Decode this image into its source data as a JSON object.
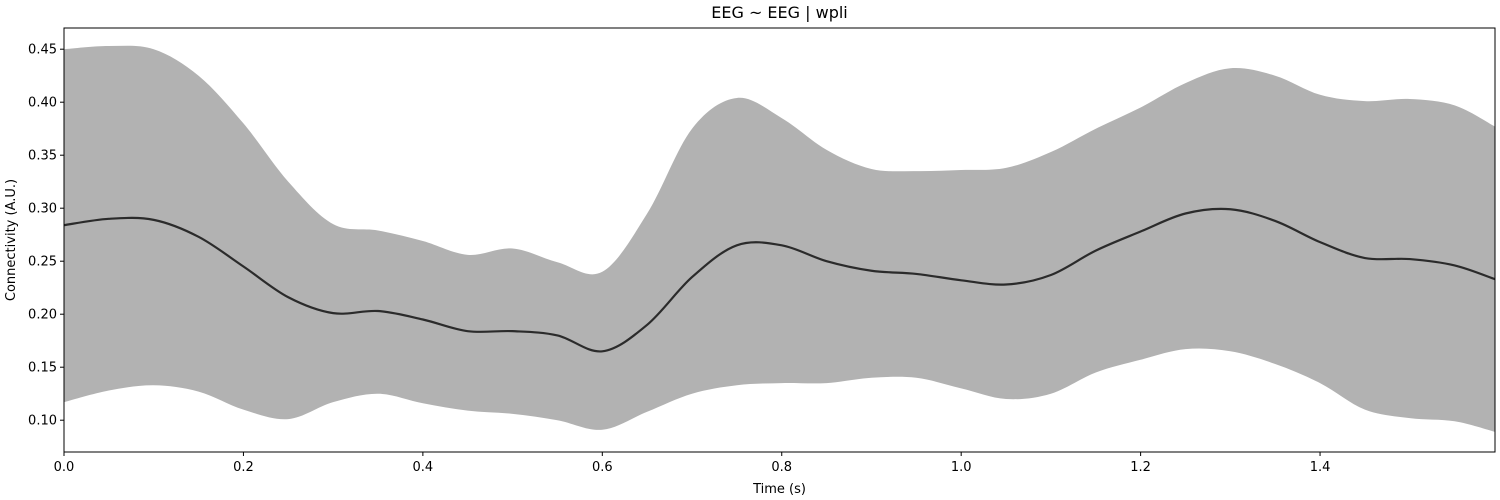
{
  "chart_data": {
    "type": "area",
    "title": "EEG ~ EEG | wpli",
    "xlabel": "Time (s)",
    "ylabel": "Connectivity (A.U.)",
    "xlim": [
      0.0,
      1.595
    ],
    "ylim": [
      0.07,
      0.47
    ],
    "x_ticks": [
      "0.0",
      "0.2",
      "0.4",
      "0.6",
      "0.8",
      "1.0",
      "1.2",
      "1.4"
    ],
    "y_ticks": [
      "0.10",
      "0.15",
      "0.20",
      "0.25",
      "0.30",
      "0.35",
      "0.40",
      "0.45"
    ],
    "grid": false,
    "colors": {
      "band": "#b2b2b2",
      "mean": "#2b2b2b"
    },
    "x": [
      0.0,
      0.05,
      0.1,
      0.15,
      0.2,
      0.25,
      0.3,
      0.35,
      0.4,
      0.45,
      0.5,
      0.55,
      0.6,
      0.65,
      0.7,
      0.75,
      0.8,
      0.85,
      0.9,
      0.95,
      1.0,
      1.05,
      1.1,
      1.15,
      1.2,
      1.25,
      1.3,
      1.35,
      1.4,
      1.45,
      1.5,
      1.55,
      1.595
    ],
    "series": [
      {
        "kind": "line",
        "values": [
          0.284,
          0.29,
          0.289,
          0.273,
          0.245,
          0.216,
          0.201,
          0.203,
          0.195,
          0.184,
          0.184,
          0.18,
          0.165,
          0.19,
          0.235,
          0.265,
          0.265,
          0.25,
          0.241,
          0.238,
          0.232,
          0.228,
          0.237,
          0.26,
          0.278,
          0.295,
          0.299,
          0.288,
          0.268,
          0.253,
          0.252,
          0.246,
          0.233
        ]
      },
      {
        "kind": "band",
        "lower": [
          0.117,
          0.128,
          0.133,
          0.127,
          0.11,
          0.101,
          0.117,
          0.125,
          0.116,
          0.109,
          0.106,
          0.1,
          0.091,
          0.108,
          0.125,
          0.133,
          0.135,
          0.135,
          0.14,
          0.14,
          0.13,
          0.12,
          0.125,
          0.145,
          0.157,
          0.167,
          0.165,
          0.153,
          0.135,
          0.11,
          0.102,
          0.099,
          0.089
        ],
        "upper": [
          0.45,
          0.453,
          0.45,
          0.425,
          0.38,
          0.325,
          0.285,
          0.279,
          0.269,
          0.256,
          0.262,
          0.249,
          0.24,
          0.295,
          0.375,
          0.404,
          0.385,
          0.355,
          0.337,
          0.335,
          0.336,
          0.338,
          0.353,
          0.375,
          0.395,
          0.418,
          0.432,
          0.425,
          0.407,
          0.401,
          0.403,
          0.397,
          0.377
        ]
      }
    ]
  }
}
